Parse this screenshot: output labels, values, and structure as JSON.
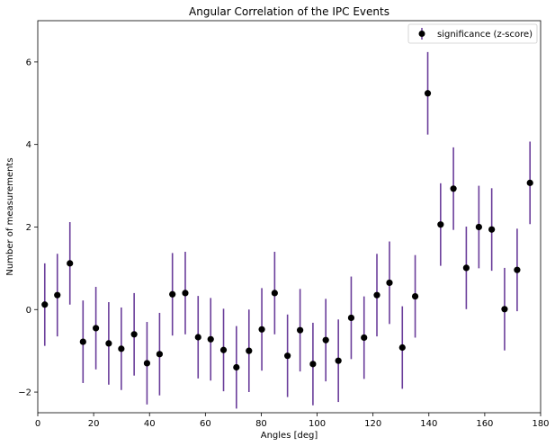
{
  "chart_data": {
    "type": "scatter",
    "title": "Angular Correlation of the IPC Events",
    "xlabel": "Angles [deg]",
    "ylabel": "Number of measurements",
    "xlim": [
      0,
      180
    ],
    "ylim": [
      -2.5,
      7.0
    ],
    "xticks": [
      0,
      20,
      40,
      60,
      80,
      100,
      120,
      140,
      160,
      180
    ],
    "yticks": [
      -2,
      0,
      2,
      4,
      6
    ],
    "xtick_labels": [
      "0",
      "20",
      "40",
      "60",
      "80",
      "100",
      "120",
      "140",
      "160",
      "180"
    ],
    "ytick_labels": [
      "−2",
      "0",
      "2",
      "4",
      "6"
    ],
    "grid": false,
    "legend_position": "top-right",
    "series": [
      {
        "name": "significance (z-score)",
        "marker_color": "#000000",
        "errorbar_color": "#6a3d9a",
        "error": 1.0,
        "x": [
          2.5,
          7.0,
          11.5,
          16.2,
          20.8,
          25.4,
          29.9,
          34.5,
          39.1,
          43.6,
          48.2,
          52.8,
          57.4,
          61.9,
          66.5,
          71.1,
          75.6,
          80.2,
          84.8,
          89.4,
          93.9,
          98.5,
          103.1,
          107.6,
          112.2,
          116.8,
          121.4,
          125.9,
          130.5,
          135.1,
          139.6,
          144.2,
          148.8,
          153.4,
          157.9,
          162.5,
          167.1,
          171.6,
          176.2
        ],
        "y": [
          0.12,
          0.35,
          1.12,
          -0.78,
          -0.45,
          -0.82,
          -0.95,
          -0.6,
          -1.3,
          -1.08,
          0.37,
          0.4,
          -0.67,
          -0.72,
          -0.98,
          -1.4,
          -1.0,
          -0.48,
          0.4,
          -1.12,
          -0.5,
          -1.32,
          -0.74,
          -1.24,
          -0.2,
          -0.68,
          0.35,
          0.65,
          -0.92,
          0.32,
          5.24,
          2.06,
          2.93,
          1.01,
          2.0,
          1.94,
          0.01,
          0.96,
          3.07
        ]
      }
    ]
  }
}
